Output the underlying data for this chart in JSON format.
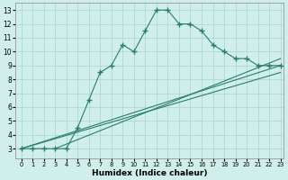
{
  "xlabel": "Humidex (Indice chaleur)",
  "xlim": [
    -0.5,
    23.3
  ],
  "ylim": [
    2.3,
    13.5
  ],
  "yticks": [
    3,
    4,
    5,
    6,
    7,
    8,
    9,
    10,
    11,
    12,
    13
  ],
  "xticks": [
    0,
    1,
    2,
    3,
    4,
    5,
    6,
    7,
    8,
    9,
    10,
    11,
    12,
    13,
    14,
    15,
    16,
    17,
    18,
    19,
    20,
    21,
    22,
    23
  ],
  "line_color": "#2a7d6e",
  "bg_color": "#d0eeea",
  "grid_color": "#a8d5cf",
  "main_line_x": [
    0,
    1,
    2,
    3,
    4,
    5,
    6,
    7,
    8,
    9,
    10,
    11,
    12,
    13,
    14,
    15,
    16,
    17,
    18,
    19,
    20,
    21,
    22,
    23
  ],
  "main_line_y": [
    3,
    3,
    3,
    3,
    3,
    4.5,
    6.5,
    8.5,
    9,
    10.5,
    10,
    11.5,
    13,
    13,
    12,
    12,
    11.5,
    10.5,
    10,
    9.5,
    9.5,
    9,
    9,
    9
  ],
  "straight_lines": [
    {
      "x": [
        0,
        23
      ],
      "y": [
        3,
        8.5
      ]
    },
    {
      "x": [
        0,
        23
      ],
      "y": [
        3,
        9.0
      ]
    },
    {
      "x": [
        3,
        23
      ],
      "y": [
        3,
        9.5
      ]
    }
  ]
}
